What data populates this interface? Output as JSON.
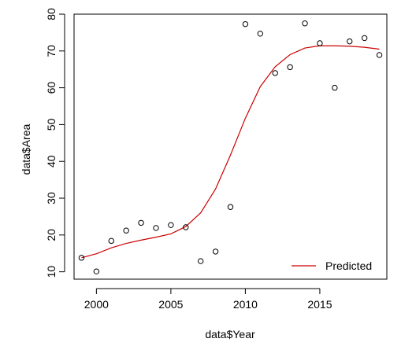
{
  "chart_data": {
    "type": "scatter",
    "title": "",
    "xlabel": "data$Year",
    "ylabel": "data$Area",
    "xlim": [
      1998.5,
      2019.5
    ],
    "ylim": [
      8,
      80
    ],
    "x_ticks": [
      2000,
      2005,
      2010,
      2015
    ],
    "y_ticks": [
      10,
      20,
      30,
      40,
      50,
      60,
      70,
      80
    ],
    "grid": false,
    "legend_position": "bottom-right",
    "points": {
      "x": [
        1999,
        2000,
        2001,
        2002,
        2003,
        2004,
        2005,
        2006,
        2007,
        2008,
        2009,
        2010,
        2011,
        2012,
        2013,
        2014,
        2015,
        2016,
        2017,
        2018,
        2019
      ],
      "y": [
        13.8,
        10.1,
        18.4,
        21.2,
        23.3,
        21.9,
        22.7,
        22.1,
        12.9,
        15.5,
        27.6,
        77.3,
        74.7,
        64.0,
        65.6,
        77.5,
        72.1,
        60.0,
        72.6,
        73.5,
        68.9
      ]
    },
    "series": [
      {
        "name": "Predicted",
        "color": "#cc0000",
        "x": [
          1999,
          2000,
          2001,
          2002,
          2003,
          2004,
          2005,
          2006,
          2007,
          2008,
          2009,
          2010,
          2011,
          2012,
          2013,
          2014,
          2015,
          2016,
          2017,
          2018,
          2019
        ],
        "y": [
          13.8,
          14.9,
          16.5,
          17.7,
          18.6,
          19.4,
          20.3,
          22.3,
          26.0,
          32.5,
          41.7,
          51.7,
          60.3,
          65.7,
          69.0,
          70.8,
          71.4,
          71.4,
          71.3,
          71.0,
          70.5
        ]
      }
    ],
    "point_color": "#000000"
  }
}
